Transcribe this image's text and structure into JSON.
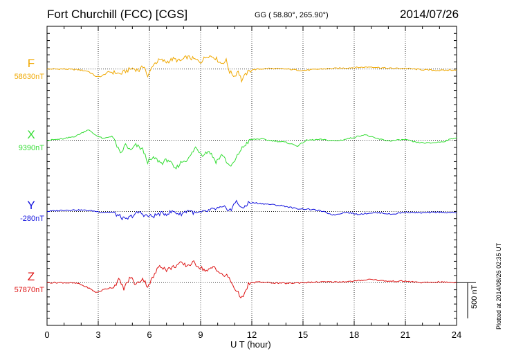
{
  "header": {
    "station": "Fort Churchill (FCC)  [CGS]",
    "coordinates": "GG ( 58.80°, 265.90°)",
    "date": "2014/07/26"
  },
  "footer": {
    "plotted": "Plotted at 2014/08/26 02:35 UT",
    "scale": "500 nT"
  },
  "chart_data": {
    "type": "line",
    "title": "Fort Churchill (FCC)  [CGS]",
    "xlabel": "U T (hour)",
    "xlim": [
      0,
      24
    ],
    "xticks": [
      0,
      3,
      6,
      9,
      12,
      15,
      18,
      21,
      24
    ],
    "xtick_labels": [
      "0",
      "3",
      "6",
      "9",
      "12",
      "15",
      "18",
      "21",
      "24"
    ],
    "ylim": [
      -3600,
      600
    ],
    "y_unit": "nT (relative to component baseline)",
    "scale_bar_nT": 500,
    "grid": true,
    "series": [
      {
        "name": "F",
        "baseline_label": "58630nT",
        "offset": 0,
        "color": "#F0A800",
        "points": [
          [
            0,
            0
          ],
          [
            1,
            0
          ],
          [
            1.8,
            -10
          ],
          [
            2.4,
            -30
          ],
          [
            2.9,
            -110
          ],
          [
            3.2,
            -100
          ],
          [
            3.6,
            -40
          ],
          [
            4.0,
            -50
          ],
          [
            4.3,
            -70
          ],
          [
            4.6,
            -30
          ],
          [
            5.0,
            10
          ],
          [
            5.4,
            -20
          ],
          [
            5.7,
            50
          ],
          [
            5.9,
            -120
          ],
          [
            6.2,
            60
          ],
          [
            6.6,
            130
          ],
          [
            7.0,
            100
          ],
          [
            7.4,
            140
          ],
          [
            7.8,
            110
          ],
          [
            8.2,
            170
          ],
          [
            8.6,
            140
          ],
          [
            9.0,
            100
          ],
          [
            9.4,
            190
          ],
          [
            9.8,
            170
          ],
          [
            10.2,
            80
          ],
          [
            10.5,
            120
          ],
          [
            10.7,
            -40
          ],
          [
            11.0,
            -100
          ],
          [
            11.2,
            -20
          ],
          [
            11.4,
            -160
          ],
          [
            11.7,
            -60
          ],
          [
            12.0,
            -10
          ],
          [
            13.0,
            10
          ],
          [
            14.0,
            0
          ],
          [
            15.0,
            -20
          ],
          [
            16.0,
            0
          ],
          [
            17.0,
            10
          ],
          [
            18.0,
            20
          ],
          [
            19.0,
            30
          ],
          [
            19.5,
            20
          ],
          [
            20.0,
            10
          ],
          [
            21.0,
            10
          ],
          [
            22.0,
            -10
          ],
          [
            23.0,
            -20
          ],
          [
            24.0,
            -10
          ]
        ]
      },
      {
        "name": "X",
        "baseline_label": "9390nT",
        "offset": -1000,
        "color": "#33DD33",
        "points": [
          [
            0,
            0
          ],
          [
            1.0,
            20
          ],
          [
            1.7,
            60
          ],
          [
            2.4,
            150
          ],
          [
            2.8,
            80
          ],
          [
            3.3,
            20
          ],
          [
            3.8,
            60
          ],
          [
            4.1,
            -80
          ],
          [
            4.3,
            -200
          ],
          [
            4.6,
            -60
          ],
          [
            4.9,
            -150
          ],
          [
            5.2,
            -70
          ],
          [
            5.6,
            -130
          ],
          [
            5.9,
            -300
          ],
          [
            6.3,
            -250
          ],
          [
            6.7,
            -320
          ],
          [
            7.1,
            -270
          ],
          [
            7.5,
            -410
          ],
          [
            7.9,
            -300
          ],
          [
            8.3,
            -260
          ],
          [
            8.7,
            -100
          ],
          [
            9.1,
            -200
          ],
          [
            9.5,
            -150
          ],
          [
            9.9,
            -300
          ],
          [
            10.3,
            -200
          ],
          [
            10.7,
            -380
          ],
          [
            11.0,
            -300
          ],
          [
            11.3,
            -150
          ],
          [
            11.7,
            -40
          ],
          [
            12.0,
            10
          ],
          [
            12.5,
            20
          ],
          [
            13.0,
            0
          ],
          [
            14.0,
            -30
          ],
          [
            14.7,
            -80
          ],
          [
            15.2,
            0
          ],
          [
            16.0,
            10
          ],
          [
            17.0,
            -10
          ],
          [
            18.0,
            40
          ],
          [
            18.6,
            80
          ],
          [
            19.2,
            30
          ],
          [
            20.0,
            -10
          ],
          [
            21.0,
            10
          ],
          [
            21.6,
            -30
          ],
          [
            22.4,
            -40
          ],
          [
            23.2,
            -20
          ],
          [
            24.0,
            40
          ]
        ]
      },
      {
        "name": "Y",
        "baseline_label": "-280nT",
        "offset": -2000,
        "color": "#1111DD",
        "points": [
          [
            0,
            0
          ],
          [
            1.0,
            20
          ],
          [
            2.0,
            20
          ],
          [
            2.6,
            10
          ],
          [
            3.2,
            -10
          ],
          [
            3.8,
            -10
          ],
          [
            4.2,
            -60
          ],
          [
            4.6,
            -120
          ],
          [
            5.0,
            -60
          ],
          [
            5.4,
            -10
          ],
          [
            5.8,
            -60
          ],
          [
            6.2,
            -70
          ],
          [
            6.6,
            -30
          ],
          [
            7.0,
            -30
          ],
          [
            7.4,
            0
          ],
          [
            7.8,
            -40
          ],
          [
            8.3,
            20
          ],
          [
            8.7,
            -30
          ],
          [
            9.2,
            -10
          ],
          [
            9.6,
            20
          ],
          [
            10.0,
            40
          ],
          [
            10.4,
            50
          ],
          [
            10.8,
            20
          ],
          [
            11.1,
            160
          ],
          [
            11.4,
            30
          ],
          [
            11.8,
            120
          ],
          [
            12.2,
            120
          ],
          [
            13.0,
            100
          ],
          [
            13.8,
            80
          ],
          [
            14.6,
            40
          ],
          [
            15.4,
            30
          ],
          [
            16.0,
            10
          ],
          [
            16.8,
            -50
          ],
          [
            17.5,
            -10
          ],
          [
            18.2,
            -40
          ],
          [
            19.0,
            -20
          ],
          [
            19.6,
            -20
          ],
          [
            20.2,
            -40
          ],
          [
            21.0,
            -10
          ],
          [
            22.0,
            -20
          ],
          [
            23.0,
            -10
          ],
          [
            24.0,
            -20
          ]
        ]
      },
      {
        "name": "Z",
        "baseline_label": "57870nT",
        "offset": -3000,
        "color": "#DD1111",
        "points": [
          [
            0,
            0
          ],
          [
            1.0,
            0
          ],
          [
            1.8,
            -10
          ],
          [
            2.4,
            -70
          ],
          [
            2.9,
            -140
          ],
          [
            3.4,
            -90
          ],
          [
            3.9,
            -60
          ],
          [
            4.2,
            40
          ],
          [
            4.5,
            -80
          ],
          [
            4.9,
            80
          ],
          [
            5.2,
            -30
          ],
          [
            5.6,
            60
          ],
          [
            5.9,
            -50
          ],
          [
            6.3,
            110
          ],
          [
            6.6,
            250
          ],
          [
            7.0,
            180
          ],
          [
            7.4,
            220
          ],
          [
            7.8,
            270
          ],
          [
            8.2,
            240
          ],
          [
            8.6,
            280
          ],
          [
            9.0,
            210
          ],
          [
            9.4,
            160
          ],
          [
            9.8,
            230
          ],
          [
            10.2,
            110
          ],
          [
            10.6,
            90
          ],
          [
            10.9,
            -40
          ],
          [
            11.2,
            -150
          ],
          [
            11.5,
            -220
          ],
          [
            11.8,
            -20
          ],
          [
            12.3,
            10
          ],
          [
            13.0,
            0
          ],
          [
            14.0,
            -10
          ],
          [
            15.0,
            0
          ],
          [
            16.0,
            10
          ],
          [
            17.0,
            10
          ],
          [
            18.0,
            20
          ],
          [
            19.0,
            50
          ],
          [
            19.5,
            30
          ],
          [
            20.0,
            20
          ],
          [
            21.0,
            20
          ],
          [
            22.0,
            0
          ],
          [
            23.0,
            10
          ],
          [
            24.0,
            0
          ]
        ]
      }
    ]
  }
}
